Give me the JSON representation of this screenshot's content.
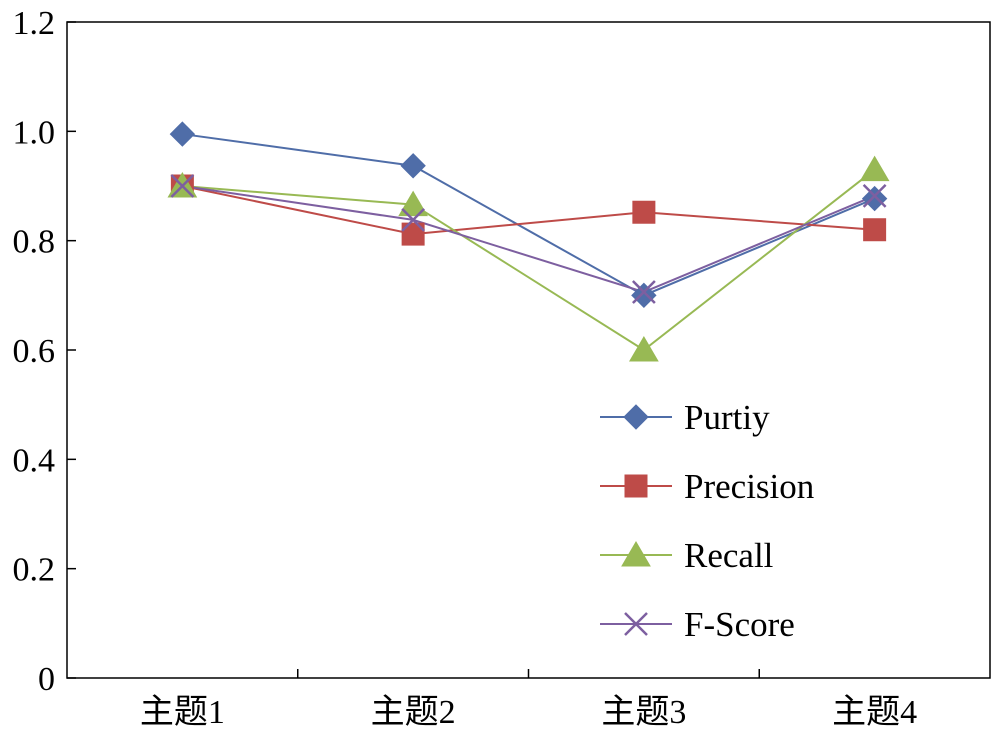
{
  "chart_data": {
    "type": "line",
    "categories": [
      "主题1",
      "主题2",
      "主题3",
      "主题4"
    ],
    "ylim": [
      0,
      1.2
    ],
    "yticks": [
      0,
      0.2,
      0.4,
      0.6,
      0.8,
      1.0,
      1.2
    ],
    "ytick_labels": [
      "0",
      "0.2",
      "0.4",
      "0.6",
      "0.8",
      "1.0",
      "1.2"
    ],
    "grid": false,
    "legend_position": "lower-right",
    "series": [
      {
        "name": "Purtiy",
        "color": "#4f6da8",
        "marker": "diamond",
        "values": [
          0.995,
          0.937,
          0.7,
          0.877
        ]
      },
      {
        "name": "Precision",
        "color": "#be4b48",
        "marker": "square",
        "values": [
          0.9,
          0.812,
          0.852,
          0.82
        ]
      },
      {
        "name": "Recall",
        "color": "#98b954",
        "marker": "triangle",
        "values": [
          0.9,
          0.866,
          0.6,
          0.93
        ]
      },
      {
        "name": "F-Score",
        "color": "#7d5fa0",
        "marker": "x",
        "values": [
          0.9,
          0.838,
          0.706,
          0.882
        ]
      }
    ]
  }
}
